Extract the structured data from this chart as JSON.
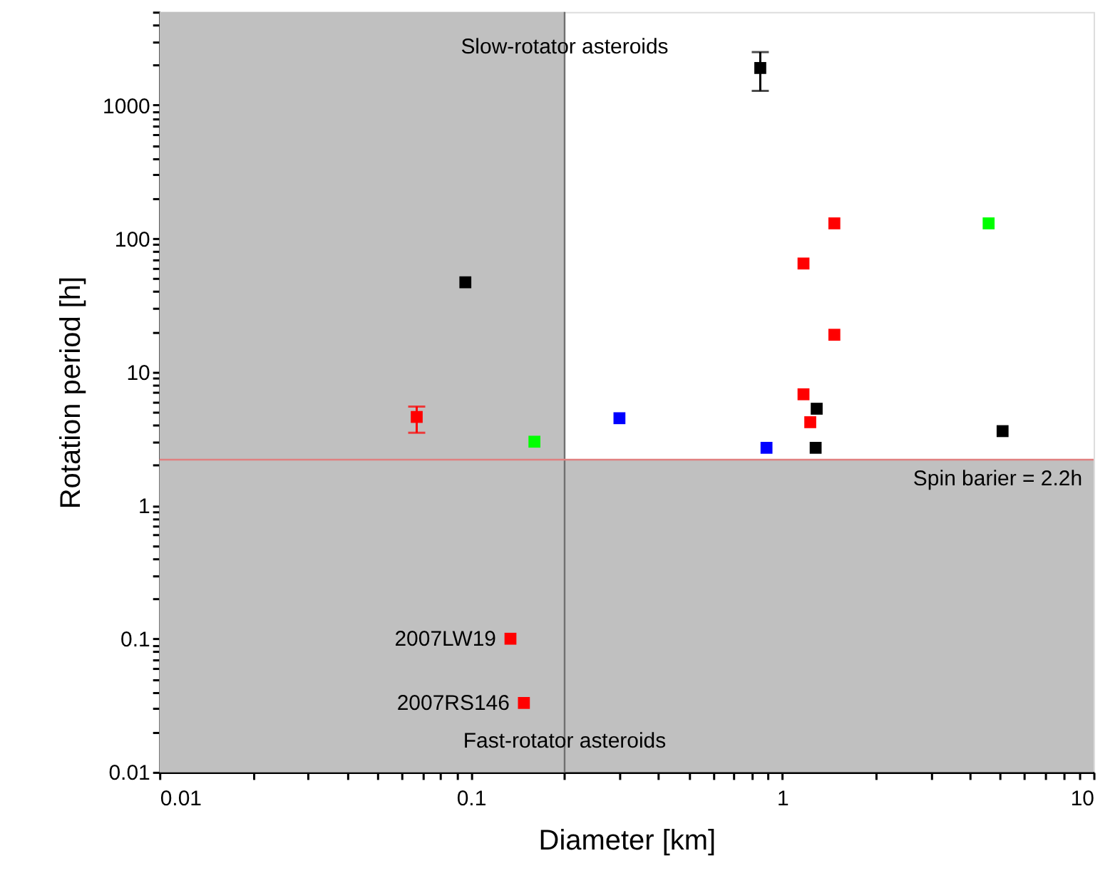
{
  "chart_data": {
    "type": "scatter",
    "xlabel": "Diameter [km]",
    "ylabel": "Rotation period [h]",
    "log": "xy",
    "grid": false,
    "marker": "square",
    "xlim": [
      0.01,
      10
    ],
    "ylim": [
      0.01,
      5000
    ],
    "xticks": [
      0.01,
      {
        "value": 0.02,
        "label": null
      },
      {
        "value": 0.03,
        "label": null
      },
      {
        "value": 0.04,
        "label": null
      },
      {
        "value": 0.05,
        "label": null
      },
      {
        "value": 0.06,
        "label": null
      },
      {
        "value": 0.07,
        "label": null
      },
      {
        "value": 0.08,
        "label": null
      },
      {
        "value": 0.09,
        "label": null
      },
      0.1,
      {
        "value": 0.2,
        "label": null
      },
      {
        "value": 0.3,
        "label": null
      },
      {
        "value": 0.4,
        "label": null
      },
      {
        "value": 0.5,
        "label": null
      },
      {
        "value": 0.6,
        "label": null
      },
      {
        "value": 0.7,
        "label": null
      },
      {
        "value": 0.8,
        "label": null
      },
      {
        "value": 0.9,
        "label": null
      },
      1,
      {
        "value": 2,
        "label": null
      },
      {
        "value": 3,
        "label": null
      },
      {
        "value": 4,
        "label": null
      },
      {
        "value": 5,
        "label": null
      },
      {
        "value": 6,
        "label": null
      },
      {
        "value": 7,
        "label": null
      },
      {
        "value": 8,
        "label": null
      },
      {
        "value": 9,
        "label": null
      },
      10
    ],
    "yticks": [
      0.01,
      {
        "value": 0.02,
        "label": null
      },
      {
        "value": 0.03,
        "label": null
      },
      {
        "value": 0.04,
        "label": null
      },
      {
        "value": 0.05,
        "label": null
      },
      {
        "value": 0.06,
        "label": null
      },
      {
        "value": 0.07,
        "label": null
      },
      {
        "value": 0.08,
        "label": null
      },
      {
        "value": 0.09,
        "label": null
      },
      0.1,
      {
        "value": 0.2,
        "label": null
      },
      {
        "value": 0.3,
        "label": null
      },
      {
        "value": 0.4,
        "label": null
      },
      {
        "value": 0.5,
        "label": null
      },
      {
        "value": 0.6,
        "label": null
      },
      {
        "value": 0.7,
        "label": null
      },
      {
        "value": 0.8,
        "label": null
      },
      {
        "value": 0.9,
        "label": null
      },
      1,
      {
        "value": 2,
        "label": null
      },
      {
        "value": 3,
        "label": null
      },
      {
        "value": 4,
        "label": null
      },
      {
        "value": 5,
        "label": null
      },
      {
        "value": 6,
        "label": null
      },
      {
        "value": 7,
        "label": null
      },
      {
        "value": 8,
        "label": null
      },
      {
        "value": 9,
        "label": null
      },
      10,
      {
        "value": 20,
        "label": null
      },
      {
        "value": 30,
        "label": null
      },
      {
        "value": 40,
        "label": null
      },
      {
        "value": 50,
        "label": null
      },
      {
        "value": 60,
        "label": null
      },
      {
        "value": 70,
        "label": null
      },
      {
        "value": 80,
        "label": null
      },
      {
        "value": 90,
        "label": null
      },
      100,
      {
        "value": 200,
        "label": null
      },
      {
        "value": 300,
        "label": null
      },
      {
        "value": 400,
        "label": null
      },
      {
        "value": 500,
        "label": null
      },
      {
        "value": 600,
        "label": null
      },
      {
        "value": 700,
        "label": null
      },
      {
        "value": 800,
        "label": null
      },
      {
        "value": 900,
        "label": null
      },
      1000,
      {
        "value": 2000,
        "label": null
      },
      {
        "value": 3000,
        "label": null
      },
      {
        "value": 4000,
        "label": null
      },
      {
        "value": 5000,
        "label": null
      }
    ],
    "series": [
      {
        "color": "#000000",
        "x": [
          0.096,
          0.85,
          1.29,
          1.28,
          5.1
        ],
        "values": [
          47,
          1900,
          5.3,
          2.7,
          3.6
        ],
        "errors": [
          null,
          [
            1280,
            2500
          ],
          null,
          null,
          null
        ]
      },
      {
        "color": "#ff0000",
        "x": [
          0.067,
          1.47,
          1.17,
          1.47,
          1.17,
          1.23,
          0.134,
          0.148
        ],
        "values": [
          4.6,
          130,
          65,
          19,
          6.8,
          4.2,
          0.1,
          0.033
        ],
        "errors": [
          [
            3.5,
            5.5
          ],
          null,
          null,
          null,
          null,
          null,
          null,
          null
        ]
      },
      {
        "color": "#00ff00",
        "x": [
          0.16,
          4.6
        ],
        "values": [
          3.0,
          130
        ]
      },
      {
        "color": "#0000ff",
        "x": [
          0.3,
          0.89
        ],
        "values": [
          4.5,
          2.7
        ]
      }
    ],
    "bands": [
      {
        "axis": "x",
        "from": 0.01,
        "to": 0.2,
        "color": "#c0c0c0"
      },
      {
        "axis": "y",
        "from": 0.01,
        "to": 2.2,
        "color": "#c0c0c0"
      }
    ],
    "ref_lines": [
      {
        "axis": "x",
        "value": 0.2,
        "color": "#707070"
      },
      {
        "axis": "y",
        "value": 2.2,
        "label": "Spin barier = 2.2h",
        "color": "#e08080"
      }
    ],
    "annotations": [
      {
        "text": "Slow-rotator asteroids",
        "x": 0.2,
        "y": 2750
      },
      {
        "text": "Fast-rotator asteroids",
        "x": 0.2,
        "y": 0.0173
      },
      {
        "text": "2007LW19",
        "x": 0.134,
        "y": 0.1
      },
      {
        "text": "2007RS146",
        "x": 0.148,
        "y": 0.033
      }
    ]
  }
}
